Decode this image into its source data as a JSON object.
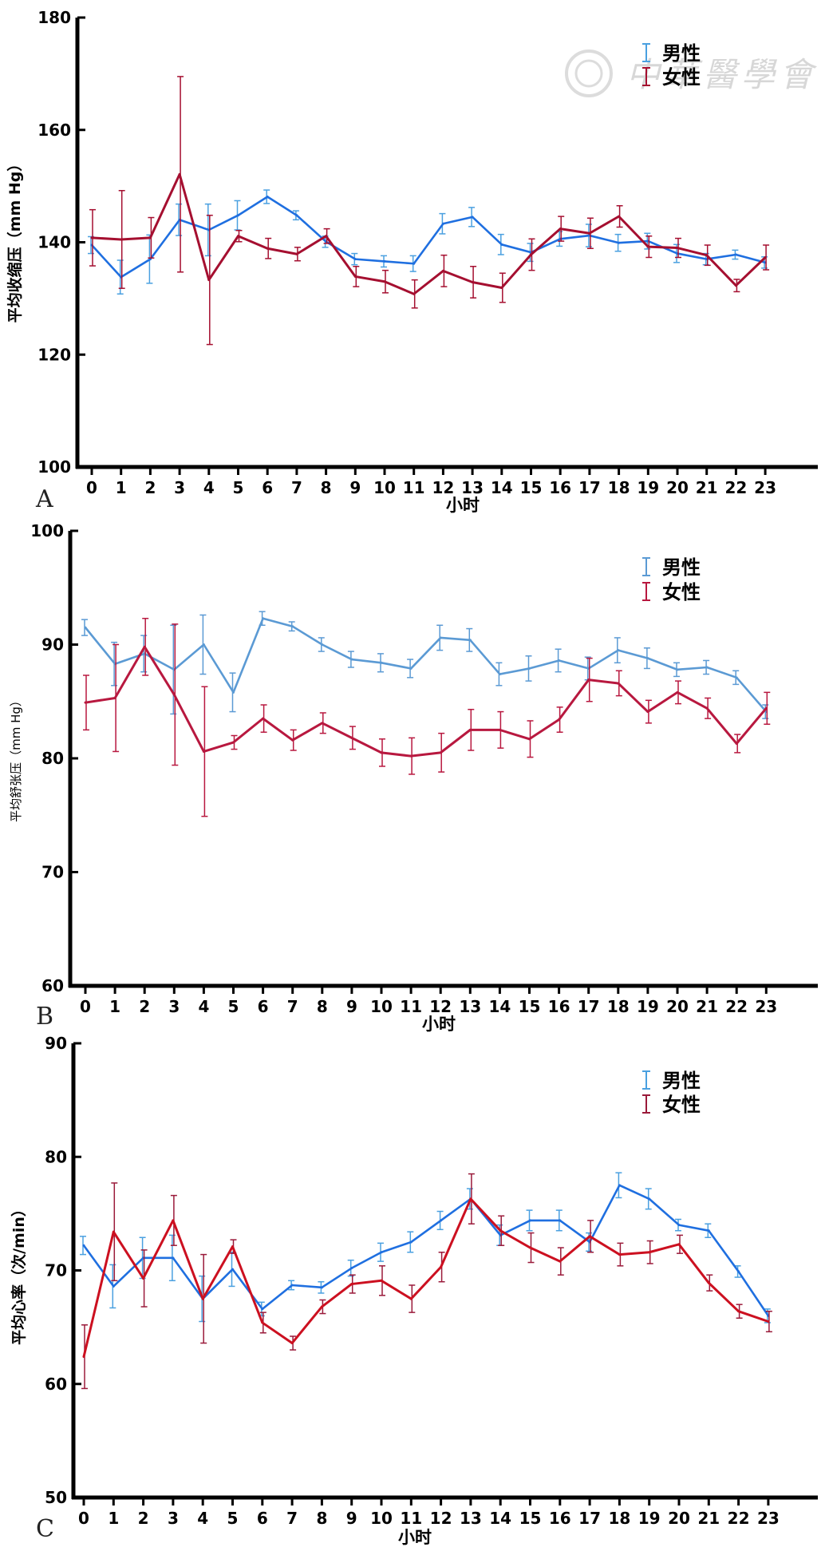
{
  "watermark": {
    "text": "中華醫學會"
  },
  "chart_data": [
    {
      "type": "line",
      "panel": "A",
      "xlabel": "小时",
      "ylabel": "平均收缩压（mm Hg）",
      "ylim": [
        100,
        180
      ],
      "yticks": [
        100,
        120,
        140,
        160,
        180
      ],
      "x": [
        0,
        1,
        2,
        3,
        4,
        5,
        6,
        7,
        8,
        9,
        10,
        11,
        12,
        13,
        14,
        15,
        16,
        17,
        18,
        19,
        20,
        21,
        22,
        23
      ],
      "legend_position": "top-right",
      "series": [
        {
          "name": "男性",
          "color": "#1f6fe0",
          "errcolor": "#4aa0e0",
          "values": [
            139.5,
            133.8,
            137,
            144,
            142.2,
            144.8,
            148.1,
            144.8,
            140.1,
            137,
            136.6,
            136.2,
            143.3,
            144.5,
            139.6,
            138.2,
            140.6,
            141.2,
            139.9,
            140.2,
            138,
            137,
            137.8,
            136.4
          ],
          "errors": [
            1.5,
            3.0,
            4.3,
            2.8,
            4.6,
            2.6,
            1.2,
            0.8,
            1.0,
            1.0,
            1.0,
            1.4,
            1.8,
            1.7,
            1.8,
            1.6,
            1.3,
            2.0,
            1.5,
            1.4,
            1.6,
            1.0,
            0.8,
            1.0
          ]
        },
        {
          "name": "女性",
          "color": "#a50f30",
          "errcolor": "#a50f30",
          "values": [
            140.8,
            140.5,
            140.8,
            152.1,
            133.3,
            141.1,
            138.9,
            137.9,
            141.1,
            133.9,
            133.0,
            130.8,
            134.9,
            132.9,
            131.9,
            137.8,
            142.4,
            141.6,
            144.6,
            139.2,
            139,
            137.7,
            132.3,
            137.3
          ],
          "errors": [
            5,
            8.7,
            3.6,
            17.4,
            11.5,
            1.0,
            1.8,
            1.2,
            1.3,
            1.8,
            2.0,
            2.5,
            2.8,
            2.8,
            2.6,
            2.8,
            2.2,
            2.7,
            1.9,
            1.9,
            1.7,
            1.8,
            1.1,
            2.2
          ]
        }
      ]
    },
    {
      "type": "line",
      "panel": "B",
      "xlabel": "小时",
      "ylabel": "平均舒张压（mm Hg）",
      "ylim": [
        60,
        100
      ],
      "yticks": [
        60,
        70,
        80,
        90,
        100
      ],
      "x": [
        0,
        1,
        2,
        3,
        4,
        5,
        6,
        7,
        8,
        9,
        10,
        11,
        12,
        13,
        14,
        15,
        16,
        17,
        18,
        19,
        20,
        21,
        22,
        23
      ],
      "legend_position": "top-right",
      "series": [
        {
          "name": "男性",
          "color": "#5b9ad4",
          "errcolor": "#5b9ad4",
          "values": [
            91.5,
            88.3,
            89.2,
            87.8,
            90.0,
            85.8,
            92.3,
            91.6,
            90.0,
            88.7,
            88.4,
            87.9,
            90.6,
            90.4,
            87.4,
            87.9,
            88.6,
            87.9,
            89.5,
            88.8,
            87.8,
            88.0,
            87.1,
            84.1
          ],
          "errors": [
            0.7,
            1.9,
            1.6,
            3.9,
            2.6,
            1.7,
            0.6,
            0.4,
            0.6,
            0.7,
            0.8,
            0.8,
            1.1,
            1.0,
            1.0,
            1.1,
            1.0,
            1.0,
            1.1,
            0.9,
            0.6,
            0.6,
            0.6,
            0.6
          ]
        },
        {
          "name": "女性",
          "color": "#b8183f",
          "errcolor": "#b8183f",
          "values": [
            84.9,
            85.3,
            89.8,
            85.6,
            80.6,
            81.4,
            83.5,
            81.6,
            83.1,
            81.8,
            80.5,
            80.2,
            80.5,
            82.5,
            82.5,
            81.7,
            83.4,
            86.9,
            86.6,
            84.1,
            85.8,
            84.4,
            81.3,
            84.4
          ],
          "errors": [
            2.4,
            4.7,
            2.5,
            6.2,
            5.7,
            0.6,
            1.2,
            0.9,
            0.9,
            1.0,
            1.2,
            1.6,
            1.7,
            1.8,
            1.6,
            1.6,
            1.1,
            1.9,
            1.1,
            1.0,
            1.0,
            0.9,
            0.8,
            1.4
          ]
        }
      ]
    },
    {
      "type": "line",
      "panel": "C",
      "xlabel": "小时",
      "ylabel": "平均心率（次/min）",
      "ylim": [
        50,
        90
      ],
      "yticks": [
        50,
        60,
        70,
        80,
        90
      ],
      "x": [
        0,
        1,
        2,
        3,
        4,
        5,
        6,
        7,
        8,
        9,
        10,
        11,
        12,
        13,
        14,
        15,
        16,
        17,
        18,
        19,
        20,
        21,
        22,
        23
      ],
      "legend_position": "top-right",
      "series": [
        {
          "name": "男性",
          "color": "#1f6fe0",
          "errcolor": "#4aa0e0",
          "values": [
            72.2,
            68.6,
            71.1,
            71.1,
            67.5,
            70.1,
            66.6,
            68.7,
            68.5,
            70.2,
            71.6,
            72.5,
            74.4,
            76.3,
            73.1,
            74.4,
            74.4,
            72.5,
            77.5,
            76.3,
            74.0,
            73.5,
            69.9,
            66.0
          ],
          "errors": [
            0.8,
            1.9,
            1.8,
            2.0,
            2.0,
            1.5,
            0.6,
            0.4,
            0.5,
            0.7,
            0.8,
            0.9,
            0.8,
            0.9,
            0.9,
            0.9,
            0.9,
            0.8,
            1.1,
            0.9,
            0.5,
            0.6,
            0.5,
            0.6
          ]
        },
        {
          "name": "女性",
          "color": "#cc1020",
          "errcolor": "#9a1a3a",
          "values": [
            62.4,
            73.4,
            69.3,
            74.4,
            67.5,
            72.1,
            65.4,
            63.6,
            66.8,
            68.8,
            69.1,
            67.5,
            70.3,
            76.3,
            73.5,
            72.0,
            70.8,
            73.0,
            71.4,
            71.6,
            72.3,
            68.9,
            66.4,
            65.5
          ],
          "errors": [
            2.8,
            4.3,
            2.5,
            2.2,
            3.9,
            0.6,
            0.9,
            0.6,
            0.6,
            0.8,
            1.3,
            1.2,
            1.3,
            2.2,
            1.3,
            1.3,
            1.2,
            1.4,
            1.0,
            1.0,
            0.8,
            0.7,
            0.6,
            0.9
          ]
        }
      ]
    }
  ]
}
